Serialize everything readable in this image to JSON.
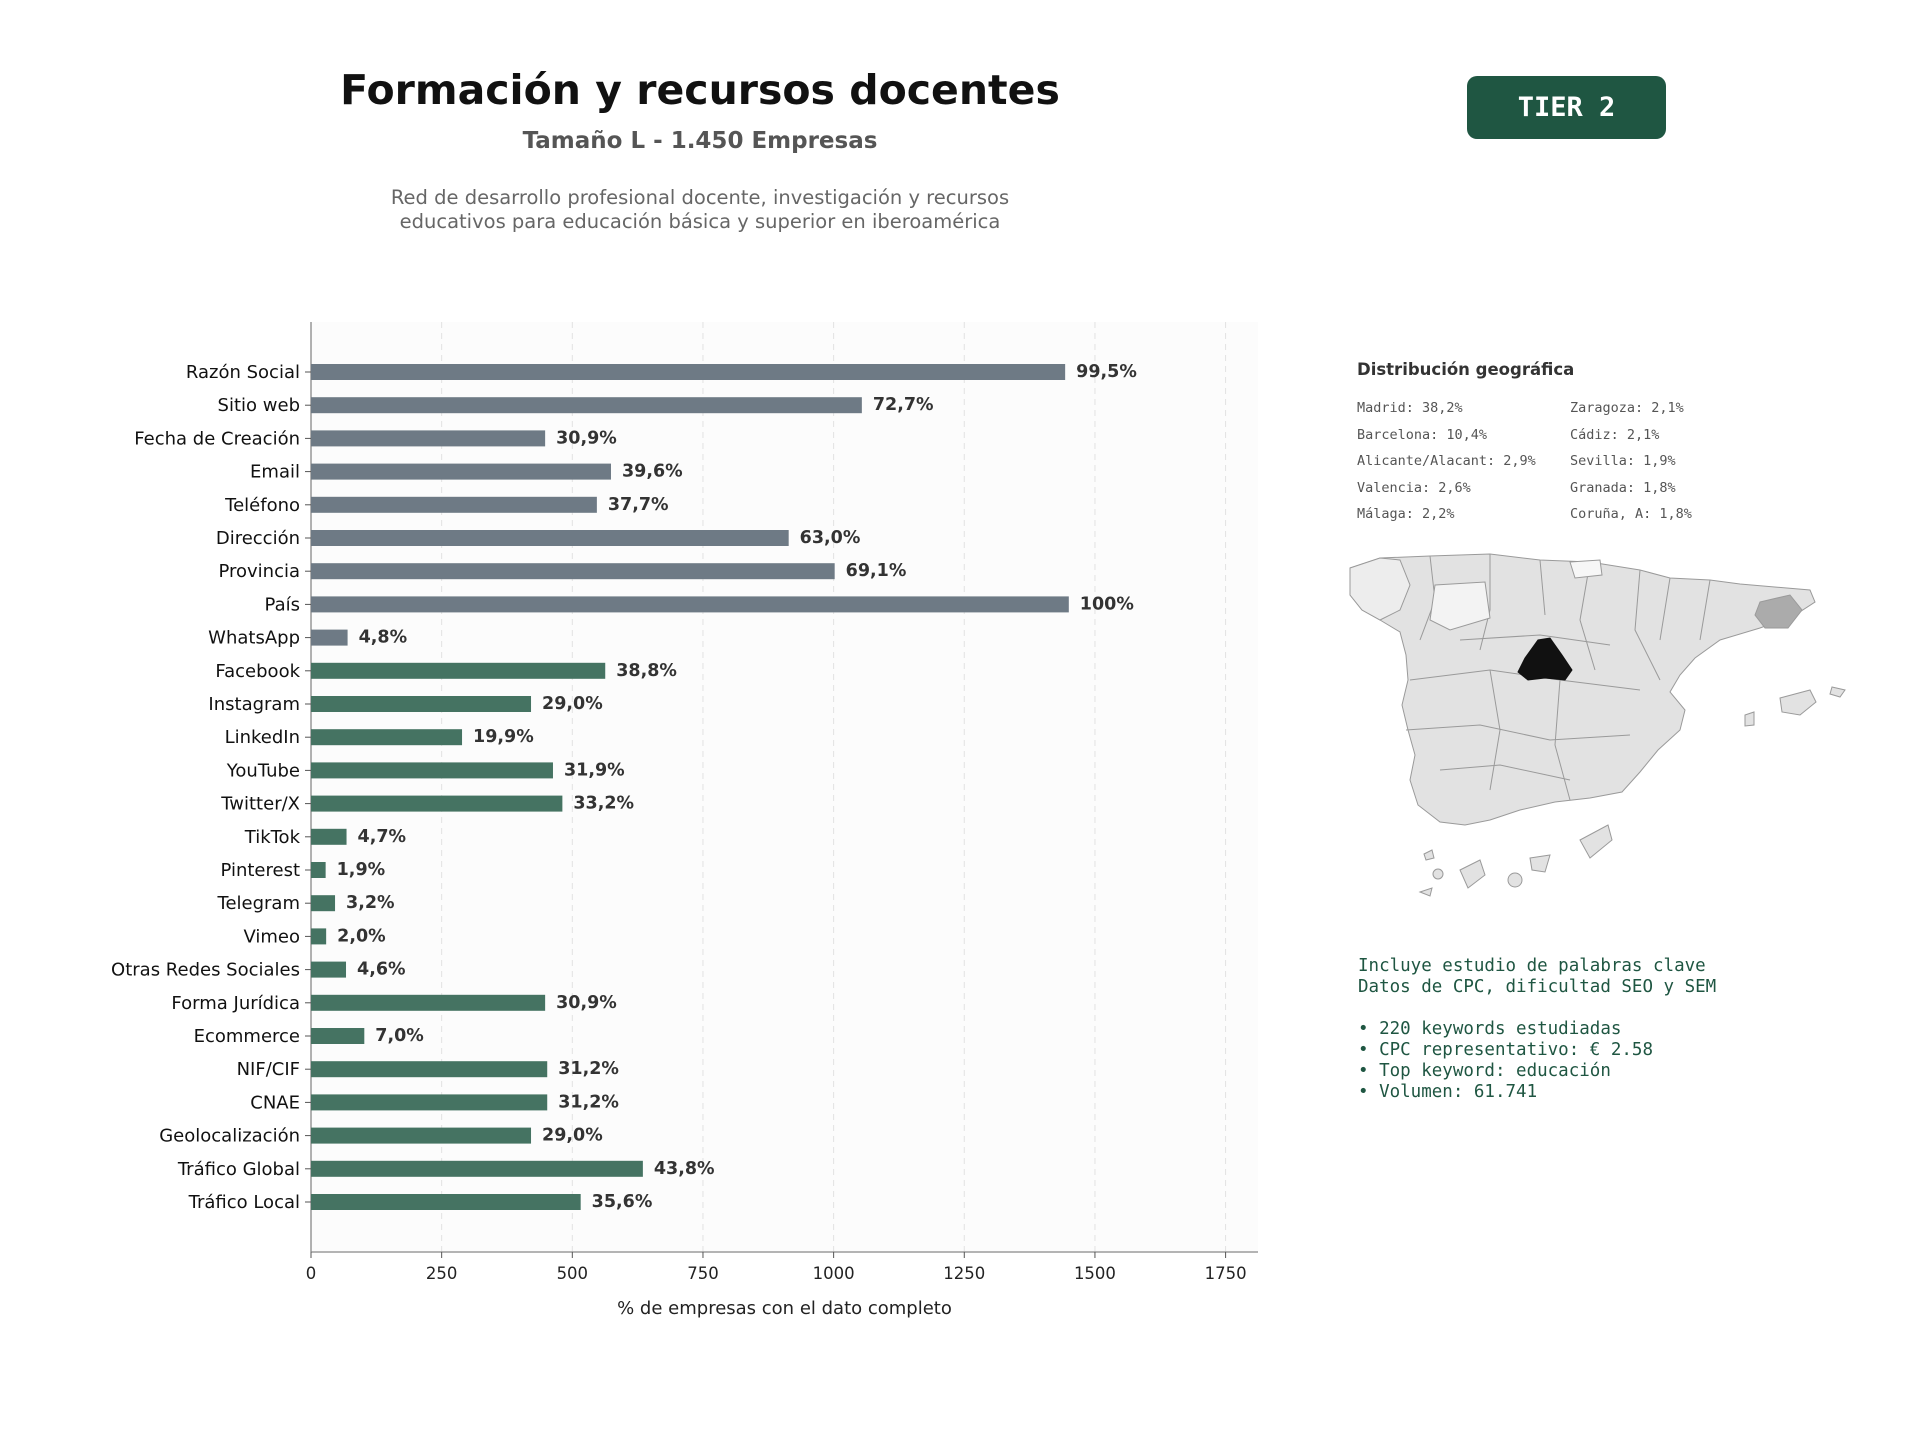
{
  "header": {
    "title": "Formación y recursos docentes",
    "subtitle": "Tamaño L - 1.450 Empresas",
    "description_lines": [
      "Red de desarrollo profesional docente, investigación y recursos",
      "educativos para educación básica y superior en iberoamérica"
    ],
    "tier_badge": "TIER 2"
  },
  "colors": {
    "gray_bar": "#6e7a85",
    "green_bar": "#457362",
    "accent": "#1f5642"
  },
  "chart_data": {
    "type": "bar",
    "orientation": "horizontal",
    "xlabel": "% de empresas con el dato completo",
    "xlim": [
      0,
      1812
    ],
    "xticks": [
      0,
      250,
      500,
      750,
      1000,
      1250,
      1500,
      1750
    ],
    "grid": "vertical dashed",
    "categories": [
      "Razón Social",
      "Sitio web",
      "Fecha de Creación",
      "Email",
      "Teléfono",
      "Dirección",
      "Provincia",
      "País",
      "WhatsApp",
      "Facebook",
      "Instagram",
      "LinkedIn",
      "YouTube",
      "Twitter/X",
      "TikTok",
      "Pinterest",
      "Telegram",
      "Vimeo",
      "Otras Redes Sociales",
      "Forma Jurídica",
      "Ecommerce",
      "NIF/CIF",
      "CNAE",
      "Geolocalización",
      "Tráfico Global",
      "Tráfico Local"
    ],
    "values": [
      1443,
      1054,
      448,
      574,
      547,
      914,
      1002,
      1450,
      70,
      563,
      421,
      289,
      463,
      481,
      68,
      28,
      46,
      29,
      67,
      448,
      102,
      452,
      452,
      421,
      635,
      516
    ],
    "labels": [
      "99,5%",
      "72,7%",
      "30,9%",
      "39,6%",
      "37,7%",
      "63,0%",
      "69,1%",
      "100%",
      "4,8%",
      "38,8%",
      "29,0%",
      "19,9%",
      "31,9%",
      "33,2%",
      "4,7%",
      "1,9%",
      "3,2%",
      "2,0%",
      "4,6%",
      "30,9%",
      "7,0%",
      "31,2%",
      "31,2%",
      "29,0%",
      "43,8%",
      "35,6%"
    ],
    "bar_group": [
      "gray",
      "gray",
      "gray",
      "gray",
      "gray",
      "gray",
      "gray",
      "gray",
      "gray",
      "green",
      "green",
      "green",
      "green",
      "green",
      "green",
      "green",
      "green",
      "green",
      "green",
      "green",
      "green",
      "green",
      "green",
      "green",
      "green",
      "green"
    ]
  },
  "geo": {
    "title": "Distribución geográfica",
    "items": [
      "Madrid: 38,2%",
      "Zaragoza: 2,1%",
      "Barcelona: 10,4%",
      "Cádiz: 2,1%",
      "Alicante/Alacant: 2,9%",
      "Sevilla: 1,9%",
      "Valencia: 2,6%",
      "Granada: 1,8%",
      "Málaga: 2,2%",
      "Coruña, A: 1,8%"
    ]
  },
  "info": {
    "lines": [
      "Incluye estudio de palabras clave",
      "Datos de CPC, dificultad SEO y SEM",
      "",
      "• 220 keywords estudiadas",
      "• CPC representativo: € 2.58",
      "• Top keyword: educación",
      "• Volumen: 61.741"
    ]
  }
}
